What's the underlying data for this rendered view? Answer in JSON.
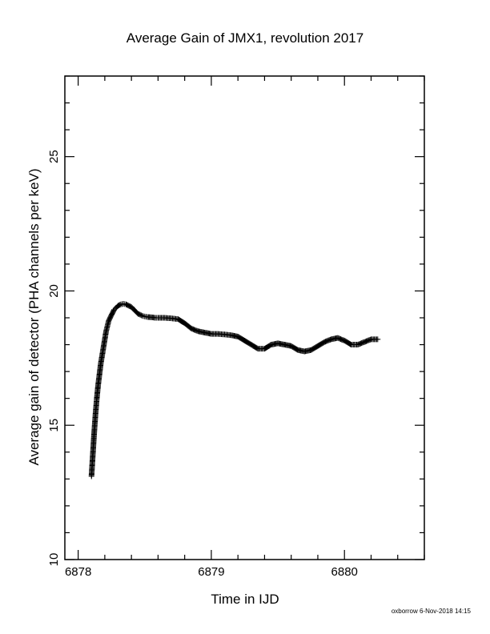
{
  "chart_data": {
    "type": "scatter",
    "title": "Average Gain of JMX1, revolution 2017",
    "xlabel": "Time in IJD",
    "ylabel": "Average gain of detector (PHA channels per keV)",
    "xlim": [
      6877.9,
      6880.6
    ],
    "ylim": [
      10,
      28
    ],
    "x_ticks": [
      6878,
      6879,
      6880
    ],
    "y_ticks": [
      10,
      15,
      20,
      25
    ],
    "grid": false,
    "marker": "plus",
    "series": [
      {
        "x": [
          6878.1,
          6878.11,
          6878.12,
          6878.13,
          6878.14,
          6878.15,
          6878.16,
          6878.17,
          6878.18,
          6878.19,
          6878.2,
          6878.21,
          6878.22,
          6878.23,
          6878.24,
          6878.25,
          6878.26,
          6878.27,
          6878.28,
          6878.3,
          6878.32,
          6878.34,
          6878.36,
          6878.38,
          6878.4,
          6878.42,
          6878.45,
          6878.48,
          6878.5,
          6878.52,
          6878.55,
          6878.58,
          6878.6,
          6878.65,
          6878.7,
          6878.75,
          6878.8,
          6878.85,
          6878.9,
          6878.95,
          6879.0,
          6879.05,
          6879.1,
          6879.15,
          6879.2,
          6879.25,
          6879.3,
          6879.35,
          6879.4,
          6879.45,
          6879.5,
          6879.55,
          6879.6,
          6879.65,
          6879.7,
          6879.75,
          6879.8,
          6879.85,
          6879.9,
          6879.95,
          6880.0,
          6880.05,
          6880.1,
          6880.15,
          6880.2,
          6880.25
        ],
        "y": [
          13.1,
          13.9,
          14.7,
          15.4,
          16.0,
          16.5,
          16.9,
          17.3,
          17.6,
          17.9,
          18.2,
          18.5,
          18.7,
          18.9,
          19.0,
          19.1,
          19.2,
          19.3,
          19.35,
          19.45,
          19.5,
          19.52,
          19.5,
          19.45,
          19.4,
          19.3,
          19.15,
          19.08,
          19.05,
          19.03,
          19.02,
          19.0,
          19.0,
          19.0,
          18.98,
          18.95,
          18.8,
          18.6,
          18.5,
          18.45,
          18.4,
          18.4,
          18.38,
          18.35,
          18.3,
          18.15,
          18.0,
          17.85,
          17.85,
          18.0,
          18.05,
          18.0,
          17.95,
          17.8,
          17.75,
          17.8,
          17.95,
          18.1,
          18.2,
          18.25,
          18.15,
          18.0,
          18.0,
          18.1,
          18.2,
          18.2
        ]
      }
    ]
  },
  "footer": "oxborrow  6-Nov-2018 14:15"
}
